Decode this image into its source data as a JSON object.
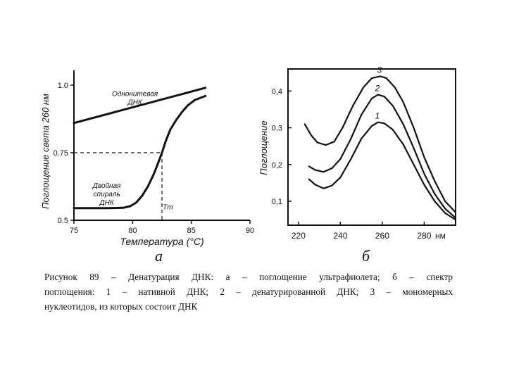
{
  "chart_data": [
    {
      "type": "line",
      "panel_label": "а",
      "xlabel": "Температура (°С)",
      "ylabel": "Поглощение света 260 нм",
      "xlim": [
        75,
        90
      ],
      "ylim": [
        0.5,
        1.0
      ],
      "x_ticks": [
        "75",
        "80",
        "85",
        "90"
      ],
      "y_ticks": [
        "0.5",
        "0.75",
        "1.0"
      ],
      "annotations": [
        {
          "text_lines": [
            "Однонитевая",
            "ДНК"
          ],
          "x": 80.2,
          "y": 0.96
        },
        {
          "text_lines": [
            "Двойная",
            "спираль",
            "ДНК"
          ],
          "x": 77.8,
          "y": 0.62
        },
        {
          "text_lines": [
            "Tm"
          ],
          "x": 83.0,
          "y": 0.54
        }
      ],
      "tm": {
        "x": 82.5,
        "y": 0.75
      },
      "series": [
        {
          "x": [
            75,
            86.2
          ],
          "y": [
            0.86,
            0.99
          ]
        },
        {
          "x": [
            75,
            78,
            79.2,
            79.8,
            80.3,
            80.8,
            81.3,
            81.8,
            82.2,
            82.5,
            82.8,
            83.2,
            83.7,
            84.2,
            84.7,
            85.3,
            86.2
          ],
          "y": [
            0.545,
            0.545,
            0.546,
            0.552,
            0.565,
            0.59,
            0.625,
            0.67,
            0.715,
            0.75,
            0.79,
            0.835,
            0.87,
            0.9,
            0.925,
            0.945,
            0.96
          ]
        }
      ]
    },
    {
      "type": "line",
      "panel_label": "б",
      "xlabel": "",
      "ylabel": "Поглощение",
      "x_unit": "нм",
      "xlim": [
        215,
        295
      ],
      "ylim": [
        0.035,
        0.46
      ],
      "x_ticks": [
        "220",
        "240",
        "260",
        "280"
      ],
      "y_ticks": [
        "0,1",
        "0,2",
        "0,3",
        "0,4"
      ],
      "series": [
        {
          "name": "1",
          "x": [
            225,
            228,
            232,
            236,
            240,
            245,
            250,
            255,
            258,
            261,
            265,
            270,
            275,
            280,
            285,
            290,
            295
          ],
          "y": [
            0.16,
            0.145,
            0.135,
            0.143,
            0.165,
            0.215,
            0.27,
            0.305,
            0.315,
            0.312,
            0.295,
            0.255,
            0.2,
            0.145,
            0.1,
            0.068,
            0.05
          ]
        },
        {
          "name": "2",
          "x": [
            225,
            228,
            232,
            236,
            240,
            245,
            250,
            255,
            258,
            261,
            265,
            270,
            275,
            280,
            285,
            290,
            295
          ],
          "y": [
            0.195,
            0.185,
            0.18,
            0.19,
            0.215,
            0.27,
            0.335,
            0.38,
            0.39,
            0.385,
            0.36,
            0.31,
            0.245,
            0.175,
            0.12,
            0.08,
            0.055
          ]
        },
        {
          "name": "3",
          "x": [
            223,
            226,
            229,
            233,
            237,
            241,
            246,
            251,
            255,
            259,
            262,
            266,
            270,
            275,
            280,
            285,
            290,
            295
          ],
          "y": [
            0.31,
            0.28,
            0.26,
            0.253,
            0.262,
            0.3,
            0.36,
            0.41,
            0.435,
            0.44,
            0.435,
            0.41,
            0.37,
            0.3,
            0.22,
            0.155,
            0.1,
            0.07
          ]
        }
      ]
    }
  ],
  "caption": {
    "line1": "Рисунок 89 – Денатурация ДНК: а – поглощение ультрафиолета; б – спектр",
    "line2": "поглощения: 1 – нативной ДНК; 2 – денатурированной ДНК; 3 – мономерных",
    "line3": "нуклеотидов, из которых состоит ДНК"
  }
}
